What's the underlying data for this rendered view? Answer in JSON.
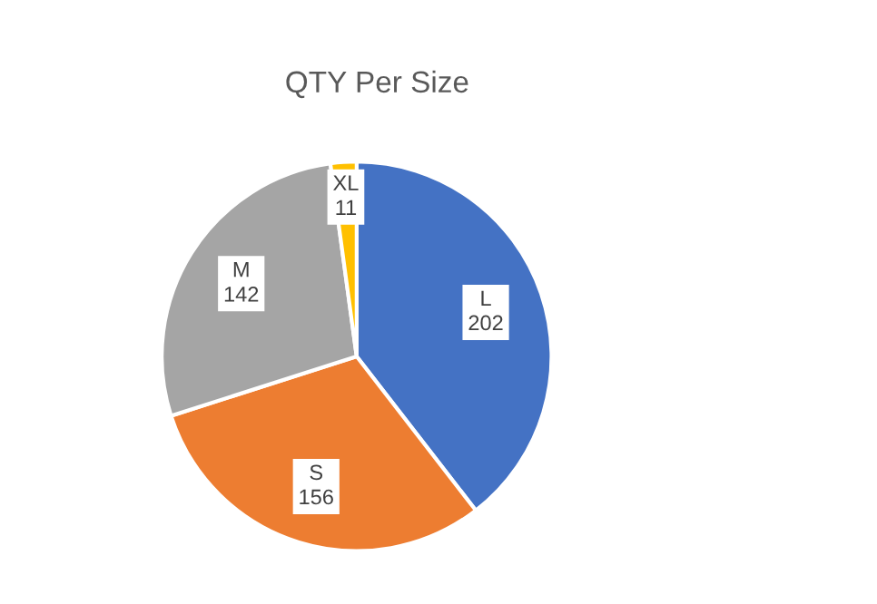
{
  "chart_data": {
    "type": "pie",
    "title": "QTY Per Size",
    "categories": [
      "L",
      "S",
      "M",
      "XL"
    ],
    "values": [
      202,
      156,
      142,
      11
    ],
    "colors": [
      "#4472c4",
      "#ed7d31",
      "#a5a5a5",
      "#ffc000"
    ],
    "data_labels": true,
    "legend": false
  }
}
